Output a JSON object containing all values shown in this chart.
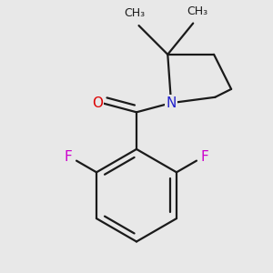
{
  "background_color": "#e8e8e8",
  "bond_color": "#1a1a1a",
  "bond_width": 1.6,
  "atom_colors": {
    "O": "#dd0000",
    "N": "#2222cc",
    "F": "#cc00cc",
    "C": "#1a1a1a"
  },
  "font_size_atom": 11,
  "font_size_methyl": 9,
  "figsize": [
    3.0,
    3.0
  ],
  "dpi": 100,
  "xlim": [
    -1.1,
    1.1
  ],
  "ylim": [
    -1.25,
    1.05
  ]
}
